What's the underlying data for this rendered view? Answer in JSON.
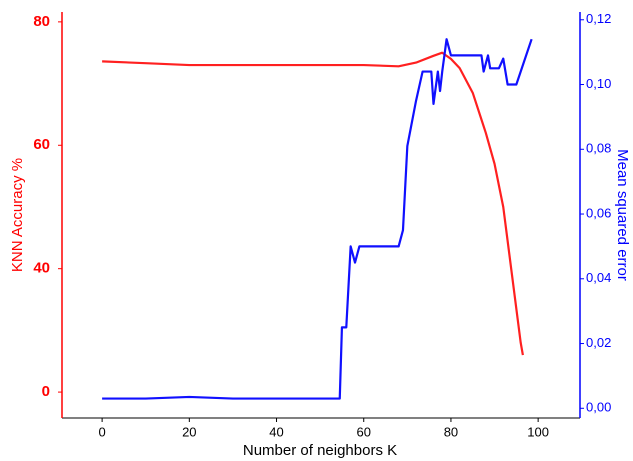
{
  "chart_data": {
    "type": "line",
    "x_label": "Number of neighbors K",
    "y_label": "KNN Accuracy %",
    "y2_label": "Mean squared error",
    "xlim": [
      -9.2,
      109.6
    ],
    "xticks": [
      0,
      20,
      40,
      60,
      80,
      100
    ],
    "ylim": [
      -8.4,
      81.6
    ],
    "yticks": [
      0,
      40,
      60,
      80
    ],
    "y_color": "#ff0000",
    "y2lim": [
      -0.003,
      0.1224
    ],
    "y2ticks": [
      {
        "value": 0,
        "label": "0,00"
      },
      {
        "value": 0.02,
        "label": "0,02"
      },
      {
        "value": 0.04,
        "label": "0,04"
      },
      {
        "value": 0.06,
        "label": "0,06"
      },
      {
        "value": 0.08,
        "label": "0,08"
      },
      {
        "value": 0.1,
        "label": "0,10"
      },
      {
        "value": 0.12,
        "label": "0,12"
      }
    ],
    "y2_color": "#0000ff",
    "grid": false,
    "series": [
      {
        "color": "#ff2020",
        "axis": "y",
        "x": [
          0,
          10,
          20,
          30,
          40,
          50,
          60,
          68,
          72,
          76,
          78,
          80,
          82,
          85,
          88,
          90,
          92,
          94,
          96,
          96.5
        ],
        "values": [
          73.6,
          73.3,
          73.0,
          73.0,
          73.0,
          73.0,
          73.0,
          72.8,
          73.4,
          74.5,
          75.0,
          74.0,
          72.5,
          68.5,
          62.0,
          57.0,
          50.0,
          38.0,
          16.0,
          12.0
        ]
      },
      {
        "color": "#1010ff",
        "axis": "y2",
        "x": [
          0,
          10,
          20,
          30,
          40,
          50,
          54.5,
          55,
          56,
          57,
          58,
          59,
          68,
          69,
          70,
          72,
          73.5,
          75.5,
          76,
          77,
          77.5,
          78,
          79,
          80,
          87,
          87.5,
          88.5,
          89,
          91,
          92,
          93,
          95,
          98.5
        ],
        "values": [
          0.003,
          0.003,
          0.0035,
          0.003,
          0.003,
          0.003,
          0.003,
          0.025,
          0.025,
          0.05,
          0.045,
          0.05,
          0.05,
          0.055,
          0.081,
          0.095,
          0.104,
          0.104,
          0.094,
          0.104,
          0.098,
          0.104,
          0.114,
          0.109,
          0.109,
          0.104,
          0.109,
          0.105,
          0.105,
          0.108,
          0.1,
          0.1,
          0.114
        ]
      }
    ]
  }
}
